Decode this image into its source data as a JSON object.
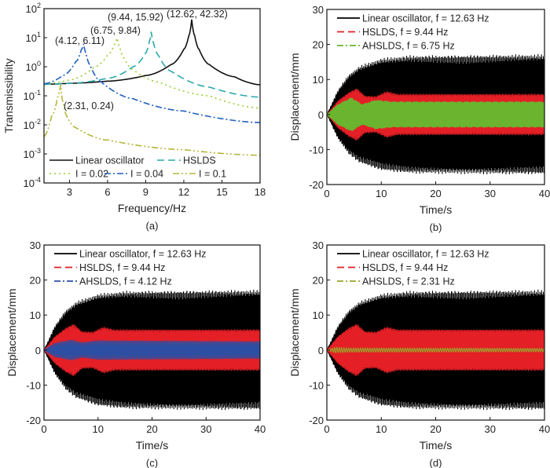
{
  "chart_data": [
    {
      "panel": "(a)",
      "type": "line",
      "xlabel": "Frequency/Hz",
      "ylabel": "Transmissibility",
      "xlim": [
        1,
        18
      ],
      "ylim": [
        0.0001,
        100
      ],
      "yscale": "log",
      "xticks": [
        3,
        6,
        9,
        12,
        15,
        18
      ],
      "yticks": [
        -4,
        -3,
        -2,
        -1,
        0,
        1,
        2
      ],
      "ytick_base": "10",
      "grid": false,
      "legend_placement": "bottom",
      "series": [
        {
          "name": "Linear oscillator",
          "color": "#111111",
          "dash": "solid",
          "points": [
            [
              1,
              0.25
            ],
            [
              3,
              0.27
            ],
            [
              6,
              0.32
            ],
            [
              9,
              0.5
            ],
            [
              11,
              1.2
            ],
            [
              12,
              4
            ],
            [
              12.4,
              12
            ],
            [
              12.62,
              42.32
            ],
            [
              12.85,
              12
            ],
            [
              13.2,
              4
            ],
            [
              14,
              1.2
            ],
            [
              16,
              0.45
            ],
            [
              18,
              0.24
            ]
          ]
        },
        {
          "name": "HSLDS",
          "color": "#2aa9a9",
          "dash": "dashed",
          "points": [
            [
              1,
              0.25
            ],
            [
              3,
              0.27
            ],
            [
              6,
              0.4
            ],
            [
              8,
              1
            ],
            [
              9,
              3
            ],
            [
              9.3,
              8
            ],
            [
              9.44,
              15.92
            ],
            [
              9.6,
              7
            ],
            [
              10,
              2.5
            ],
            [
              11,
              0.7
            ],
            [
              14,
              0.2
            ],
            [
              18,
              0.09
            ]
          ]
        },
        {
          "name": "I = 0.02",
          "color": "#9acd32",
          "dash": "dotted",
          "points": [
            [
              1,
              0.26
            ],
            [
              3,
              0.35
            ],
            [
              5,
              1
            ],
            [
              6,
              2.5
            ],
            [
              6.55,
              6
            ],
            [
              6.75,
              9.84
            ],
            [
              6.95,
              5
            ],
            [
              7.3,
              2
            ],
            [
              8,
              0.8
            ],
            [
              10,
              0.3
            ],
            [
              14,
              0.1
            ],
            [
              18,
              0.038
            ]
          ]
        },
        {
          "name": "I = 0.04",
          "color": "#1f5fbf",
          "dash": "dash-dot",
          "points": [
            [
              1,
              0.26
            ],
            [
              2.5,
              0.5
            ],
            [
              3.5,
              1.5
            ],
            [
              3.95,
              4
            ],
            [
              4.12,
              6.11
            ],
            [
              4.3,
              3
            ],
            [
              4.6,
              1.2
            ],
            [
              5.5,
              0.3
            ],
            [
              8,
              0.08
            ],
            [
              12,
              0.03
            ],
            [
              18,
              0.012
            ]
          ]
        },
        {
          "name": "I = 0.1",
          "color": "#b5b53a",
          "dash": "dash-dot-dot",
          "points": [
            [
              1,
              0.004
            ],
            [
              1.6,
              0.02
            ],
            [
              2.1,
              0.1
            ],
            [
              2.31,
              0.24
            ],
            [
              2.5,
              0.06
            ],
            [
              2.8,
              0.02
            ],
            [
              3.5,
              0.008
            ],
            [
              6,
              0.003
            ],
            [
              12,
              0.0014
            ],
            [
              18,
              0.0009
            ]
          ]
        }
      ],
      "annotations": [
        {
          "text": "(12.62, 42.32)",
          "x": 12.62,
          "y": 42.32
        },
        {
          "text": "(9.44, 15.92)",
          "x": 9.44,
          "y": 15.92
        },
        {
          "text": "(6.75, 9.84)",
          "x": 6.75,
          "y": 9.84
        },
        {
          "text": "(4.12, 6.11)",
          "x": 4.12,
          "y": 6.11
        },
        {
          "text": "(2.31, 0.24)",
          "x": 2.31,
          "y": 0.24
        }
      ]
    },
    {
      "panel": "(b)",
      "type": "line",
      "xlabel": "Time/s",
      "ylabel": "Displacement/mm",
      "xlim": [
        0,
        40
      ],
      "ylim": [
        -20,
        30
      ],
      "xticks": [
        0,
        10,
        20,
        30,
        40
      ],
      "yticks": [
        -20,
        -10,
        0,
        10,
        20,
        30
      ],
      "grid": false,
      "legend_placement": "top-left",
      "series": [
        {
          "name": "Linear oscillator, f = 12.63 Hz",
          "color": "#000000",
          "dash": "solid",
          "freq_hz": 12.63,
          "envelope": [
            [
              0,
              0
            ],
            [
              2,
              7
            ],
            [
              4,
              11.5
            ],
            [
              6,
              14
            ],
            [
              10,
              16.2
            ],
            [
              15,
              17
            ],
            [
              40,
              17.3
            ]
          ]
        },
        {
          "name": "HSLDS, f = 9.44 Hz",
          "color": "#e41f26",
          "dash": "dashed",
          "freq_hz": 9.44,
          "envelope": [
            [
              0,
              0
            ],
            [
              2,
              4
            ],
            [
              4,
              6.5
            ],
            [
              5.5,
              7.7
            ],
            [
              7,
              5.5
            ],
            [
              9,
              5.3
            ],
            [
              11,
              6.8
            ],
            [
              13,
              6
            ],
            [
              40,
              6
            ]
          ]
        },
        {
          "name": "AHSLDS, f = 6.75 Hz",
          "color": "#6ab42f",
          "dash": "dash-dot",
          "freq_hz": 6.75,
          "envelope": [
            [
              0,
              0
            ],
            [
              2,
              3
            ],
            [
              4.5,
              5
            ],
            [
              6.5,
              3
            ],
            [
              9,
              4.3
            ],
            [
              12,
              3.8
            ],
            [
              40,
              3.8
            ]
          ]
        }
      ]
    },
    {
      "panel": "(c)",
      "type": "line",
      "xlabel": "Time/s",
      "ylabel": "Displacement/mm",
      "xlim": [
        0,
        40
      ],
      "ylim": [
        -20,
        30
      ],
      "xticks": [
        0,
        10,
        20,
        30,
        40
      ],
      "yticks": [
        -20,
        -10,
        0,
        10,
        20,
        30
      ],
      "grid": false,
      "legend_placement": "top-left",
      "series": [
        {
          "name": "Linear oscillator, f = 12.63 Hz",
          "color": "#000000",
          "dash": "solid",
          "freq_hz": 12.63,
          "envelope": [
            [
              0,
              0
            ],
            [
              2,
              7
            ],
            [
              4,
              11.5
            ],
            [
              6,
              14
            ],
            [
              10,
              16.2
            ],
            [
              15,
              17
            ],
            [
              40,
              17.3
            ]
          ]
        },
        {
          "name": "HSLDS, f = 9.44 Hz",
          "color": "#e41f26",
          "dash": "dashed",
          "freq_hz": 9.44,
          "envelope": [
            [
              0,
              0
            ],
            [
              2,
              4
            ],
            [
              4,
              6.5
            ],
            [
              5.5,
              7.7
            ],
            [
              7,
              5.5
            ],
            [
              9,
              5.3
            ],
            [
              11,
              6.8
            ],
            [
              13,
              6
            ],
            [
              40,
              6
            ]
          ]
        },
        {
          "name": "AHSLDS, f = 4.12 Hz",
          "color": "#2c4fa3",
          "dash": "dash-dot",
          "freq_hz": 4.12,
          "envelope": [
            [
              0,
              0
            ],
            [
              2,
              2
            ],
            [
              5,
              3
            ],
            [
              7,
              2.2
            ],
            [
              10,
              2.8
            ],
            [
              40,
              2.5
            ]
          ]
        }
      ]
    },
    {
      "panel": "(d)",
      "type": "line",
      "xlabel": "Time/s",
      "ylabel": "Displacement/mm",
      "xlim": [
        0,
        40
      ],
      "ylim": [
        -20,
        30
      ],
      "xticks": [
        0,
        10,
        20,
        30,
        40
      ],
      "yticks": [
        -20,
        -10,
        0,
        10,
        20,
        30
      ],
      "grid": false,
      "legend_placement": "top-left",
      "series": [
        {
          "name": "Linear oscillator, f = 12.63 Hz",
          "color": "#000000",
          "dash": "solid",
          "freq_hz": 12.63,
          "envelope": [
            [
              0,
              0
            ],
            [
              2,
              7
            ],
            [
              4,
              11.5
            ],
            [
              6,
              14
            ],
            [
              10,
              16.2
            ],
            [
              15,
              17
            ],
            [
              40,
              17.3
            ]
          ]
        },
        {
          "name": "HSLDS, f = 9.44 Hz",
          "color": "#e41f26",
          "dash": "dashed",
          "freq_hz": 9.44,
          "envelope": [
            [
              0,
              0
            ],
            [
              2,
              4
            ],
            [
              4,
              6.5
            ],
            [
              5.5,
              7.7
            ],
            [
              7,
              5.5
            ],
            [
              9,
              5.3
            ],
            [
              11,
              6.8
            ],
            [
              13,
              6
            ],
            [
              40,
              6
            ]
          ]
        },
        {
          "name": "AHSLDS, f = 2.31 Hz",
          "color": "#9aa52a",
          "dash": "dash-dot",
          "freq_hz": 2.31,
          "envelope": [
            [
              0,
              0
            ],
            [
              1.5,
              0.8
            ],
            [
              4,
              0.6
            ],
            [
              40,
              0.5
            ]
          ]
        }
      ]
    }
  ]
}
